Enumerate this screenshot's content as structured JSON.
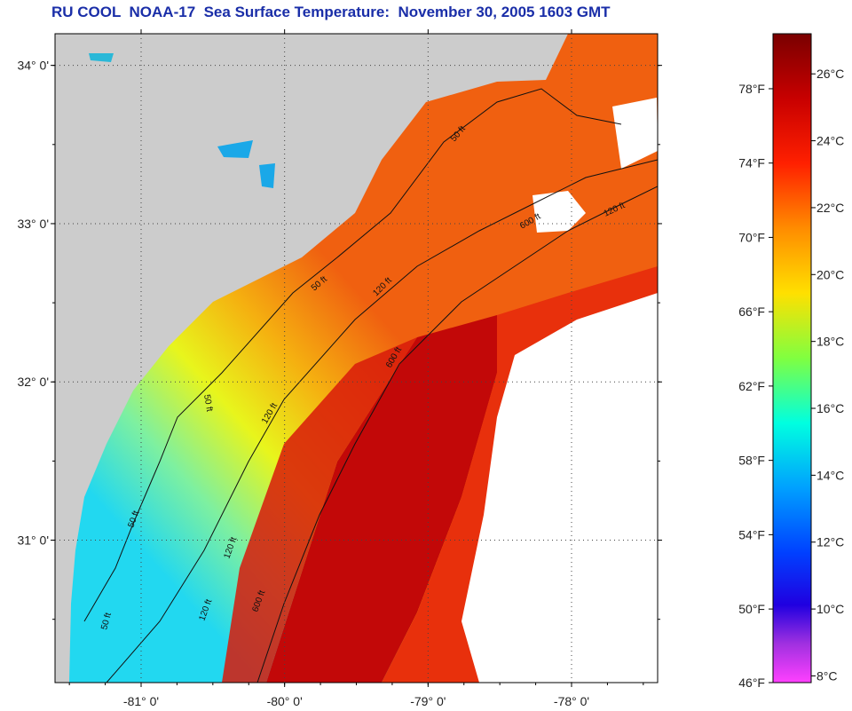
{
  "title": "RU COOL  NOAA-17  Sea Surface Temperature:  November 30, 2005 1603 GMT",
  "map": {
    "lat_labels": [
      {
        "text": "34° 0'",
        "lat": 34.0
      },
      {
        "text": "33° 0'",
        "lat": 33.0
      },
      {
        "text": "32° 0'",
        "lat": 32.0
      },
      {
        "text": "31° 0'",
        "lat": 31.0
      }
    ],
    "lon_labels": [
      {
        "text": "-81° 0'",
        "lon": -81.0
      },
      {
        "text": "-80° 0'",
        "lon": -80.0
      },
      {
        "text": "-79° 0'",
        "lon": -79.0
      },
      {
        "text": "-78° 0'",
        "lon": -78.0
      }
    ],
    "lat_range": [
      30.1,
      34.2
    ],
    "lon_range": [
      -81.6,
      -77.4
    ],
    "land_color": "#cccccc",
    "cloud_color": "#ffffff",
    "isobath_labels": [
      "50 ft",
      "120 ft",
      "600 ft",
      "50 ft",
      "120 ft",
      "600 ft",
      "120 ft",
      "50 ft",
      "50 ft",
      "120 ft",
      "600 ft",
      "50 ft",
      "120 ft"
    ]
  },
  "colorbar": {
    "fahrenheit_labels": [
      "78°F",
      "74°F",
      "70°F",
      "66°F",
      "62°F",
      "58°F",
      "54°F",
      "50°F",
      "46°F"
    ],
    "celsius_labels": [
      "26°C",
      "24°C",
      "22°C",
      "20°C",
      "18°C",
      "16°C",
      "14°C",
      "12°C",
      "10°C",
      "8°C"
    ],
    "celsius_values": [
      26,
      24,
      22,
      20,
      18,
      16,
      14,
      12,
      10,
      8
    ],
    "range_c": [
      7.8,
      27.2
    ]
  }
}
